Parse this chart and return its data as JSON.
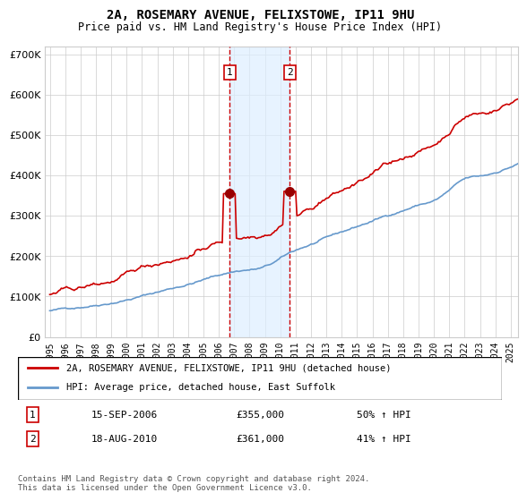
{
  "title": "2A, ROSEMARY AVENUE, FELIXSTOWE, IP11 9HU",
  "subtitle": "Price paid vs. HM Land Registry's House Price Index (HPI)",
  "legend_line1": "2A, ROSEMARY AVENUE, FELIXSTOWE, IP11 9HU (detached house)",
  "legend_line2": "HPI: Average price, detached house, East Suffolk",
  "footnote": "Contains HM Land Registry data © Crown copyright and database right 2024.\nThis data is licensed under the Open Government Licence v3.0.",
  "transaction1_date": "15-SEP-2006",
  "transaction1_price": "£355,000",
  "transaction1_hpi": "50% ↑ HPI",
  "transaction2_date": "18-AUG-2010",
  "transaction2_price": "£361,000",
  "transaction2_hpi": "41% ↑ HPI",
  "hpi_color": "#6699cc",
  "price_color": "#cc0000",
  "dot_color": "#990000",
  "vline_color": "#cc0000",
  "shade_color": "#ddeeff",
  "grid_color": "#cccccc",
  "background_color": "#ffffff",
  "ylim": [
    0,
    720000
  ],
  "yticks": [
    0,
    100000,
    200000,
    300000,
    400000,
    500000,
    600000,
    700000
  ],
  "xlim_start": 1995.0,
  "xlim_end": 2025.5,
  "transaction1_x": 2006.71,
  "transaction2_x": 2010.63,
  "transaction1_y": 355000,
  "transaction2_y": 361000
}
